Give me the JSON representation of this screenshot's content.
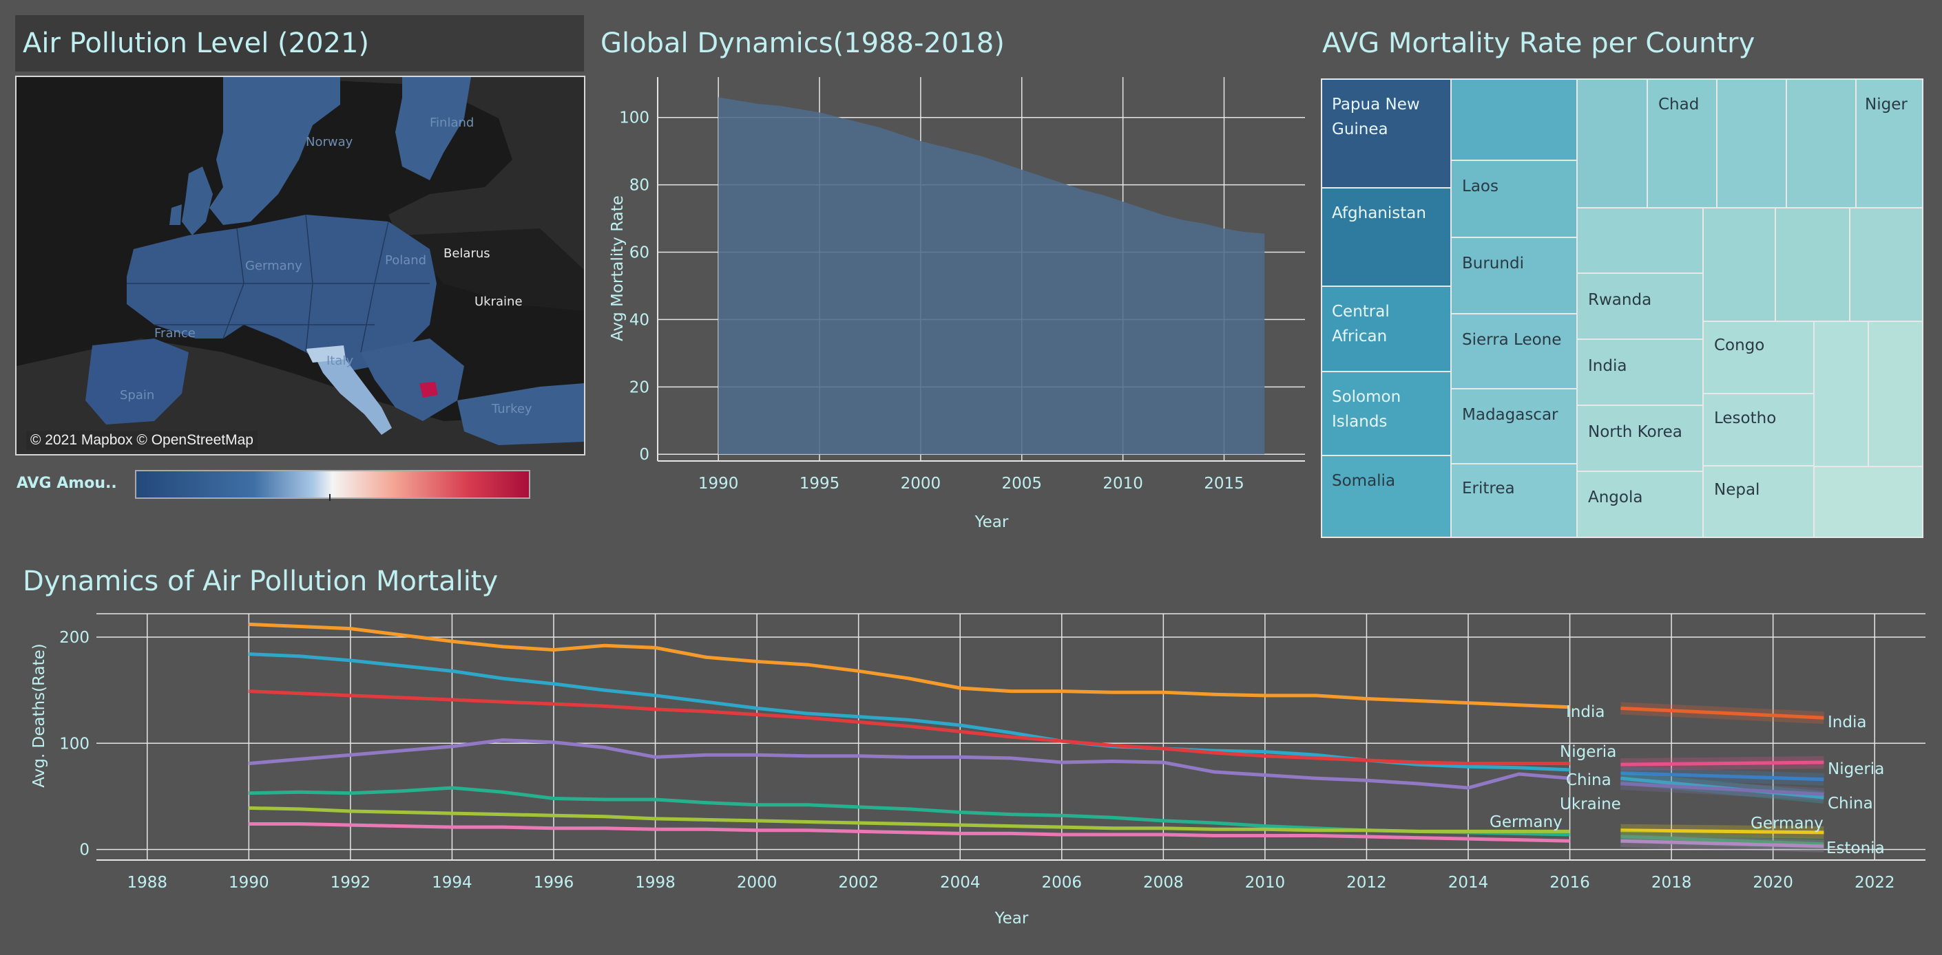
{
  "map": {
    "title": "Air Pollution Level (2021)",
    "attribution": "© 2021 Mapbox © OpenStreetMap",
    "legend_label": "AVG Amou..",
    "countries": [
      "Finland",
      "Norway",
      "Belarus",
      "Poland",
      "Ukraine",
      "Germany",
      "France",
      "Italy",
      "Spain",
      "Turkey"
    ],
    "colors": {
      "low": "#3a5f8f",
      "high": "#c0134a",
      "neutral": "#111111"
    }
  },
  "area_chart": {
    "title": "Global Dynamics(1988-2018)",
    "ylabel": "Avg Mortality Rate",
    "xlabel": "Year",
    "x_ticks": [
      "1990",
      "1995",
      "2000",
      "2005",
      "2010",
      "2015"
    ],
    "y_ticks": [
      "0",
      "20",
      "40",
      "60",
      "80",
      "100"
    ]
  },
  "treemap": {
    "title": "AVG Mortality Rate per Country",
    "labels": [
      "Papua New Guinea",
      "Afghanistan",
      "Central African",
      "Solomon Islands",
      "Somalia",
      "Laos",
      "Burundi",
      "Sierra Leone",
      "Madagascar",
      "Eritrea",
      "Chad",
      "Niger",
      "Rwanda",
      "India",
      "North Korea",
      "Angola",
      "Congo",
      "Lesotho",
      "Nepal"
    ]
  },
  "line_chart": {
    "title": "Dynamics of Air Pollution Mortality",
    "ylabel": "Avg. Deaths(Rate)",
    "xlabel": "Year",
    "x_ticks": [
      "1988",
      "1990",
      "1992",
      "1994",
      "1996",
      "1998",
      "2000",
      "2002",
      "2004",
      "2006",
      "2008",
      "2010",
      "2012",
      "2014",
      "2016",
      "2018",
      "2020",
      "2022"
    ],
    "y_ticks": [
      "0",
      "100",
      "200"
    ],
    "end_labels_left": [
      "India",
      "Nigeria",
      "China",
      "Ukraine",
      "Germany"
    ],
    "end_labels_right": [
      "India",
      "Nigeria",
      "China",
      "Germany",
      "Estonia"
    ]
  },
  "chart_data": [
    {
      "type": "area",
      "title": "Global Dynamics(1988-2018)",
      "xlabel": "Year",
      "ylabel": "Avg Mortality Rate",
      "xlim": [
        1987,
        2019
      ],
      "ylim": [
        -2,
        112
      ],
      "x": [
        1990,
        1991,
        1992,
        1993,
        1994,
        1995,
        1996,
        1997,
        1998,
        1999,
        2000,
        2001,
        2002,
        2003,
        2004,
        2005,
        2006,
        2007,
        2008,
        2009,
        2010,
        2011,
        2012,
        2013,
        2014,
        2015,
        2016,
        2017
      ],
      "values": [
        106,
        105,
        104,
        103.5,
        102.5,
        101.5,
        100,
        98.5,
        97,
        95,
        93,
        91.5,
        90,
        88.5,
        86.5,
        84.5,
        82.5,
        80.5,
        78.5,
        77,
        75,
        73,
        71,
        69.5,
        68.5,
        67,
        66,
        65.5
      ],
      "color": "#4e6c8c"
    },
    {
      "type": "treemap",
      "title": "AVG Mortality Rate per Country",
      "categories": [
        "Papua New Guinea",
        "Afghanistan",
        "Central African",
        "Solomon Islands",
        "Somalia",
        "Laos",
        "Burundi",
        "Sierra Leone",
        "Madagascar",
        "Eritrea",
        "Chad",
        "Niger",
        "Rwanda",
        "India",
        "North Korea",
        "Angola",
        "Congo",
        "Lesotho",
        "Nepal"
      ]
    },
    {
      "type": "line",
      "title": "Dynamics of Air Pollution Mortality",
      "xlabel": "Year",
      "ylabel": "Avg. Deaths(Rate)",
      "xlim": [
        1987,
        2023
      ],
      "ylim": [
        -10,
        222
      ],
      "x": [
        1990,
        1991,
        1992,
        1993,
        1994,
        1995,
        1996,
        1997,
        1998,
        1999,
        2000,
        2001,
        2002,
        2003,
        2004,
        2005,
        2006,
        2007,
        2008,
        2009,
        2010,
        2011,
        2012,
        2013,
        2014,
        2015,
        2016
      ],
      "series": [
        {
          "name": "India",
          "color": "#f59b2b",
          "values": [
            212,
            210,
            208,
            202,
            196,
            191,
            188,
            192,
            190,
            181,
            177,
            174,
            168,
            161,
            152,
            149,
            149,
            148,
            148,
            146,
            145,
            145,
            142,
            140,
            138,
            136,
            134
          ]
        },
        {
          "color": "#2ea7c9",
          "values": [
            184,
            182,
            178,
            173,
            168,
            161,
            156,
            150,
            145,
            139,
            133,
            128,
            125,
            122,
            117,
            110,
            102,
            97,
            95,
            93,
            92,
            89,
            84,
            80,
            78,
            77,
            75
          ]
        },
        {
          "name": "Nigeria",
          "color": "#e03b3e",
          "values": [
            149,
            147,
            145,
            143,
            141,
            139,
            137,
            135,
            132,
            130,
            127,
            124,
            120,
            116,
            111,
            106,
            102,
            98,
            95,
            91,
            88,
            86,
            84,
            82,
            81,
            81,
            81
          ]
        },
        {
          "color": "#9279c6",
          "values": [
            81,
            85,
            89,
            93,
            97,
            103,
            101,
            96,
            87,
            89,
            89,
            88,
            88,
            87,
            87,
            86,
            82,
            83,
            82,
            73,
            70,
            67,
            65,
            62,
            58,
            71,
            67
          ]
        },
        {
          "color": "#27b08e",
          "values": [
            53,
            54,
            53,
            55,
            58,
            54,
            48,
            47,
            47,
            44,
            42,
            42,
            40,
            38,
            35,
            33,
            32,
            30,
            27,
            25,
            22,
            20,
            18,
            17,
            16,
            15,
            14
          ]
        },
        {
          "color": "#a3c43a",
          "values": [
            39,
            38,
            36,
            35,
            34,
            33,
            32,
            31,
            29,
            28,
            27,
            26,
            25,
            24,
            23,
            22,
            21,
            20,
            20,
            19,
            19,
            18,
            18,
            17,
            17,
            17,
            17
          ]
        },
        {
          "color": "#ea78b5",
          "values": [
            24,
            24,
            23,
            22,
            21,
            21,
            20,
            20,
            19,
            19,
            18,
            18,
            17,
            16,
            15,
            15,
            14,
            14,
            14,
            13,
            13,
            13,
            12,
            11,
            10,
            9,
            8
          ]
        }
      ],
      "forecast": {
        "x": [
          2017,
          2021
        ],
        "series": [
          {
            "name": "India",
            "color": "#e8602c",
            "values": [
              133,
              124
            ]
          },
          {
            "name": "Nigeria",
            "color": "#e8508a",
            "values": [
              80,
              82
            ]
          },
          {
            "color": "#3a7fc4",
            "values": [
              72,
              66
            ]
          },
          {
            "name": "China",
            "color": "#2bb0c4",
            "values": [
              67,
              49
            ]
          },
          {
            "color": "#7b6fb0",
            "values": [
              62,
              52
            ]
          },
          {
            "name": "Germany",
            "color": "#e8c81a",
            "values": [
              18,
              16
            ]
          },
          {
            "name": "Estonia",
            "color": "#3da060",
            "values": [
              12,
              5
            ]
          },
          {
            "color": "#b08ac0",
            "values": [
              8,
              3
            ]
          }
        ]
      }
    }
  ]
}
